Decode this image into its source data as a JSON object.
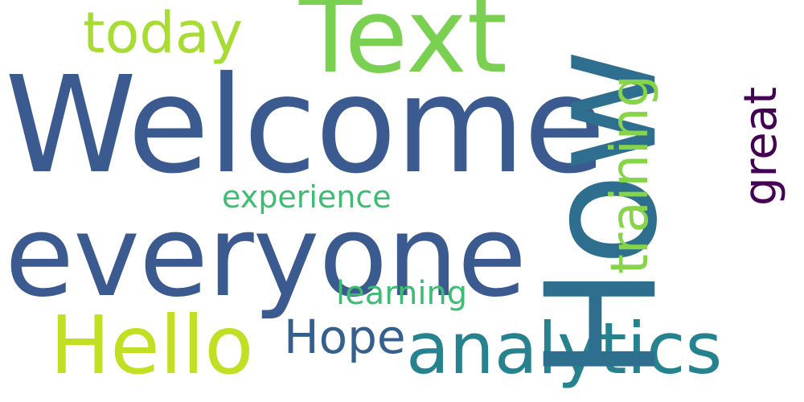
{
  "words": {
    "welcome": {
      "text": "Welcome",
      "color": "#3b5a8f"
    },
    "everyone": {
      "text": "everyone",
      "color": "#3b5a8f"
    },
    "how": {
      "text": "How",
      "color": "#2e6e8e"
    },
    "text": {
      "text": "Text",
      "color": "#7ad151"
    },
    "today": {
      "text": "today",
      "color": "#a8db34"
    },
    "hello": {
      "text": "Hello",
      "color": "#c2df23"
    },
    "hope": {
      "text": "Hope",
      "color": "#355f8d"
    },
    "analytics": {
      "text": "analytics",
      "color": "#26828e"
    },
    "training": {
      "text": "training",
      "color": "#86d549"
    },
    "great": {
      "text": "great",
      "color": "#440154"
    },
    "experience": {
      "text": "experience",
      "color": "#3fbc73"
    },
    "learning": {
      "text": "learning",
      "color": "#3fbc73"
    }
  }
}
